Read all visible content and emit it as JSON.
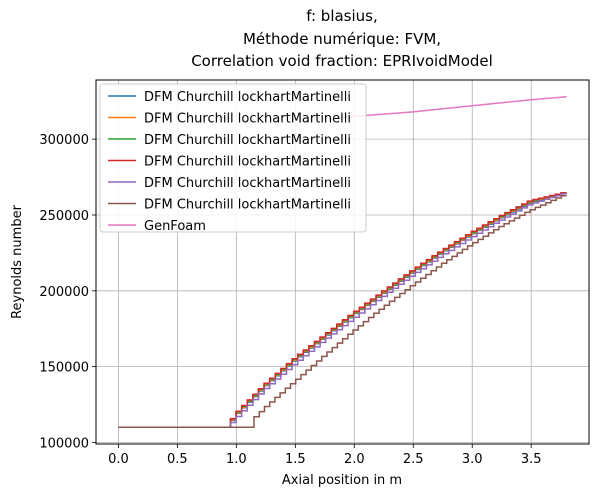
{
  "chart_data": {
    "type": "line",
    "title": [
      "f: blasius,",
      "Méthode numérique: FVM,",
      "Correlation void fraction: EPRIvoidModel"
    ],
    "xlabel": "Axial position in m",
    "ylabel": "Reynolds number",
    "xlim": [
      -0.19,
      3.99
    ],
    "ylim": [
      99000,
      339000
    ],
    "xticks": [
      0.0,
      0.5,
      1.0,
      1.5,
      2.0,
      2.5,
      3.0,
      3.5
    ],
    "xtick_labels": [
      "0.0",
      "0.5",
      "1.0",
      "1.5",
      "2.0",
      "2.5",
      "3.0",
      "3.5"
    ],
    "yticks": [
      100000,
      150000,
      200000,
      250000,
      300000
    ],
    "ytick_labels": [
      "100000",
      "150000",
      "200000",
      "250000",
      "300000"
    ],
    "grid": true,
    "legend_position": "upper-left",
    "series": [
      {
        "name": "DFM Churchill lockhartMartinelli",
        "color": "#1f77b4",
        "step": true,
        "x": [
          0.0,
          0.95,
          0.96,
          1.0,
          1.25,
          1.5,
          1.75,
          2.0,
          2.25,
          2.5,
          2.75,
          3.0,
          3.25,
          3.5,
          3.8
        ],
        "y": [
          110000,
          110000,
          113000,
          117500,
          137000,
          154000,
          169000,
          184000,
          198000,
          212000,
          225000,
          237000,
          248000,
          258000,
          265000
        ]
      },
      {
        "name": "DFM Churchill lockhartMartinelli",
        "color": "#ff7f0e",
        "step": true,
        "x": [
          0.0,
          0.95,
          0.96,
          1.0,
          1.25,
          1.5,
          1.75,
          2.0,
          2.25,
          2.5,
          2.75,
          3.0,
          3.25,
          3.5,
          3.8
        ],
        "y": [
          110000,
          110000,
          113500,
          118000,
          137500,
          154500,
          169500,
          184500,
          198500,
          212500,
          225500,
          237500,
          248500,
          258500,
          265000
        ]
      },
      {
        "name": "DFM Churchill lockhartMartinelli",
        "color": "#2ca02c",
        "step": true,
        "x": [
          0.0,
          0.95,
          0.96,
          1.0,
          1.25,
          1.5,
          1.75,
          2.0,
          2.25,
          2.5,
          2.75,
          3.0,
          3.25,
          3.5,
          3.8
        ],
        "y": [
          110000,
          110000,
          114000,
          118500,
          138000,
          155000,
          170000,
          185000,
          199000,
          213000,
          226000,
          238000,
          249000,
          259000,
          265000
        ]
      },
      {
        "name": "DFM Churchill lockhartMartinelli",
        "color": "#d62728",
        "step": true,
        "x": [
          0.0,
          0.95,
          0.96,
          1.0,
          1.25,
          1.5,
          1.75,
          2.0,
          2.25,
          2.5,
          2.75,
          3.0,
          3.25,
          3.5,
          3.8
        ],
        "y": [
          110000,
          110000,
          114000,
          119000,
          138500,
          155500,
          170500,
          185500,
          199500,
          213500,
          226500,
          238500,
          249500,
          259500,
          265000
        ]
      },
      {
        "name": "DFM Churchill lockhartMartinelli",
        "color": "#9467bd",
        "step": true,
        "x": [
          0.0,
          0.95,
          0.96,
          1.0,
          1.25,
          1.5,
          1.75,
          2.0,
          2.25,
          2.5,
          2.75,
          3.0,
          3.25,
          3.5,
          3.8
        ],
        "y": [
          110000,
          110000,
          112000,
          115500,
          135000,
          151500,
          167000,
          181500,
          196000,
          210000,
          223000,
          235000,
          246500,
          257000,
          264500
        ]
      },
      {
        "name": "DFM Churchill lockhartMartinelli",
        "color": "#8c564b",
        "step": true,
        "x": [
          0.0,
          1.15,
          1.16,
          1.25,
          1.5,
          1.75,
          2.0,
          2.25,
          2.5,
          2.75,
          3.0,
          3.25,
          3.5,
          3.8
        ],
        "y": [
          110000,
          110000,
          116000,
          123000,
          140000,
          157000,
          173500,
          189000,
          203500,
          217500,
          230500,
          242500,
          253000,
          263500
        ]
      },
      {
        "name": "GenFoam",
        "color": "#e377c2",
        "step": false,
        "x": [
          1.8,
          2.0,
          2.25,
          2.5,
          2.75,
          3.0,
          3.25,
          3.5,
          3.8
        ],
        "y": [
          313500,
          315000,
          316500,
          318000,
          320000,
          322000,
          324000,
          326000,
          328000
        ]
      }
    ]
  }
}
